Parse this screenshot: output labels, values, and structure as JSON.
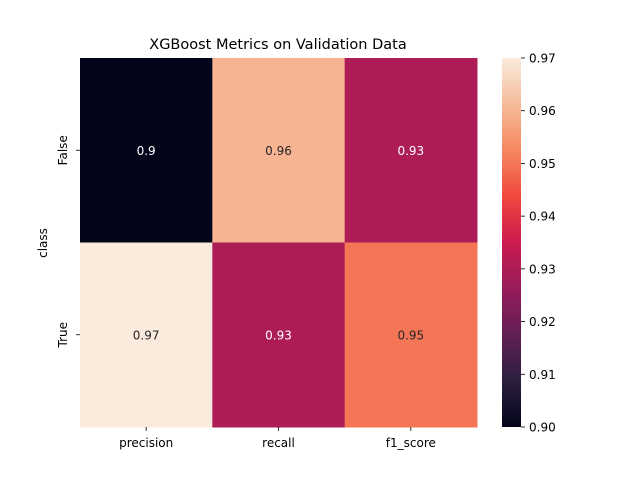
{
  "chart_data": {
    "type": "heatmap",
    "title": "XGBoost Metrics on Validation Data",
    "xlabel": "",
    "ylabel": "class",
    "x_categories": [
      "precision",
      "recall",
      "f1_score"
    ],
    "y_categories": [
      "False",
      "True"
    ],
    "values": [
      [
        0.9,
        0.96,
        0.93
      ],
      [
        0.97,
        0.93,
        0.95
      ]
    ],
    "annotations": [
      [
        "0.9",
        "0.96",
        "0.93"
      ],
      [
        "0.97",
        "0.93",
        "0.95"
      ]
    ],
    "colormap": "rocket",
    "colorbar": {
      "range": [
        0.9,
        0.97
      ],
      "ticks": [
        "0.90",
        "0.91",
        "0.92",
        "0.93",
        "0.94",
        "0.95",
        "0.96",
        "0.97"
      ]
    },
    "grid": false
  }
}
